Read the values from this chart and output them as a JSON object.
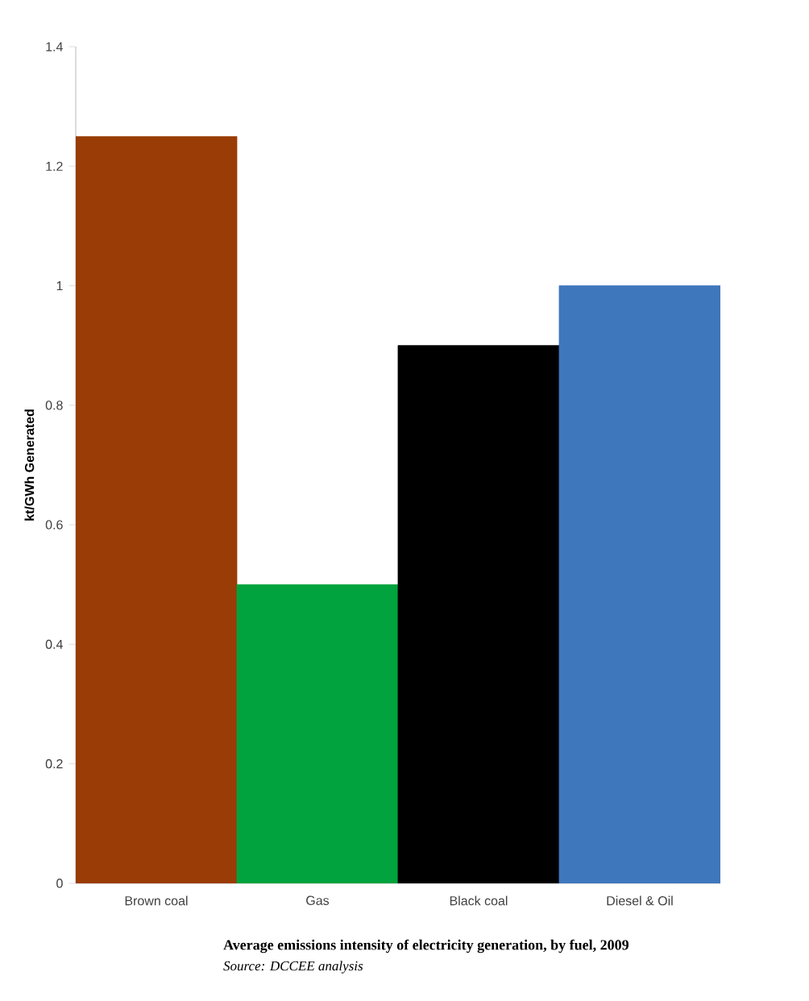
{
  "chart_data": {
    "type": "bar",
    "title": "Average emissions intensity of electricity generation, by fuel, 2009",
    "ylabel": "kt/GWh Generated",
    "categories": [
      "Brown coal",
      "Gas",
      "Black coal",
      "Diesel & Oil"
    ],
    "values": [
      1.25,
      0.5,
      0.9,
      1.0
    ],
    "colors": [
      "#9a3c05",
      "#00a33e",
      "#000000",
      "#3f77bd"
    ],
    "ylim": [
      0,
      1.4
    ],
    "yticks": [
      0,
      0.2,
      0.4,
      0.6,
      0.8,
      1,
      1.2,
      1.4
    ],
    "grid": false,
    "annotations": [
      "Source: DCCEE analysis"
    ]
  }
}
